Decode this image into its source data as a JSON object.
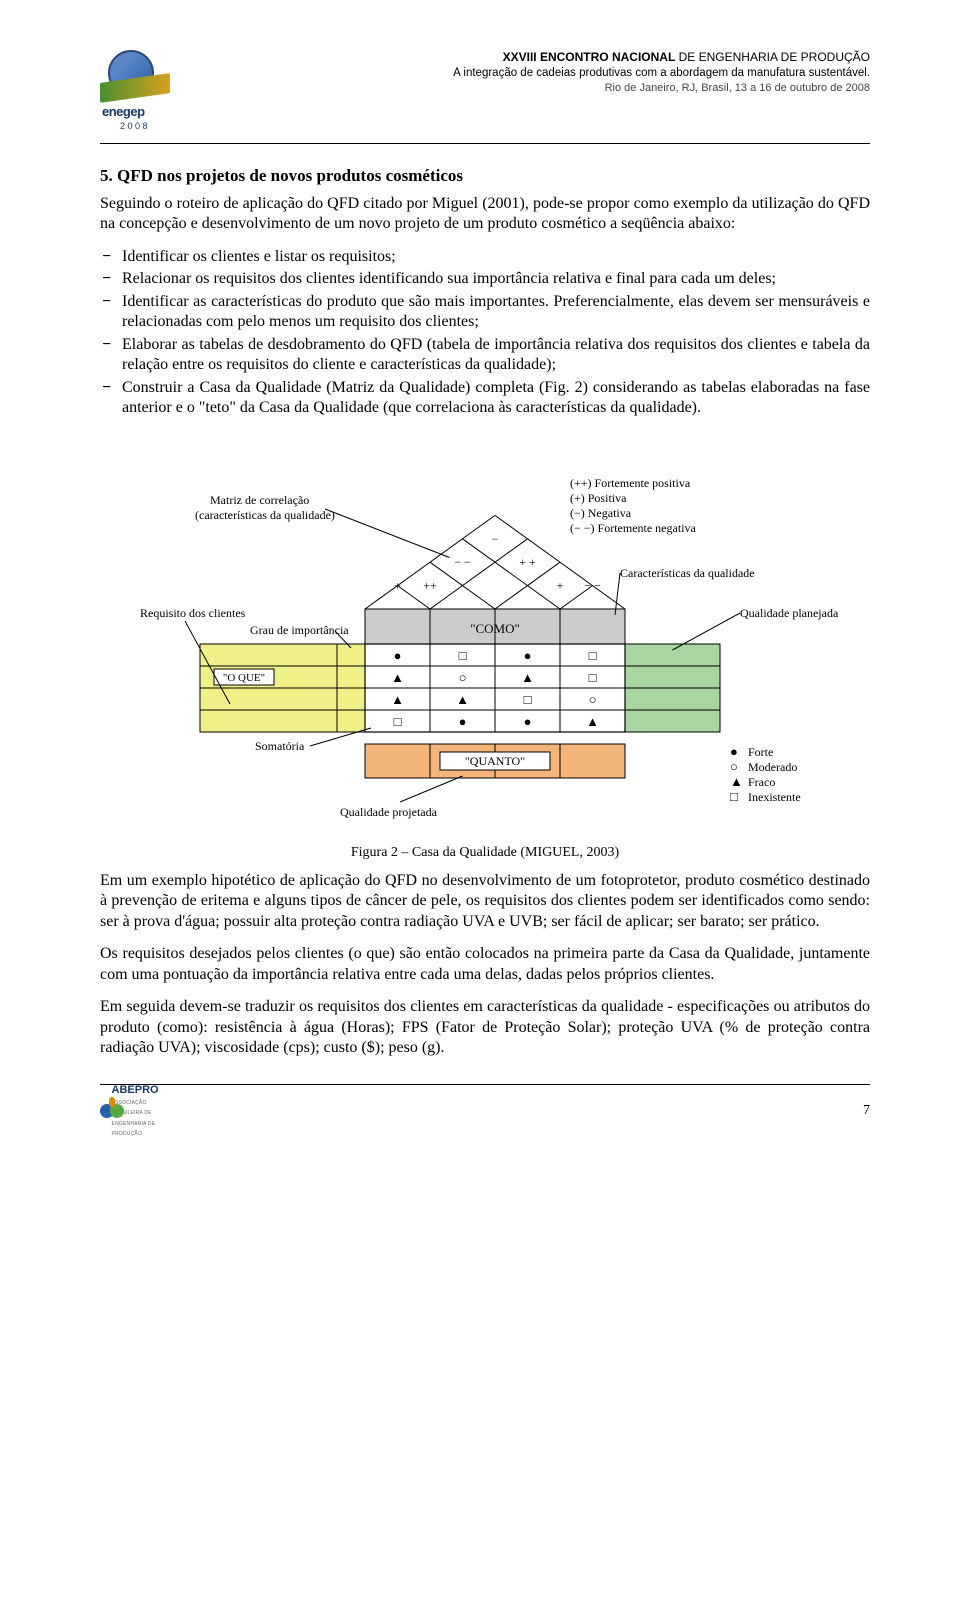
{
  "header": {
    "line1_bold": "XXVIII ENCONTRO NACIONAL",
    "line1_rest": " DE ENGENHARIA DE PRODUÇÃO",
    "line2": "A integração de cadeias produtivas com a abordagem da manufatura sustentável.",
    "line3": "Rio de Janeiro, RJ, Brasil, 13 a 16 de outubro de 2008",
    "logo_text": "enegep",
    "logo_year": "2 0 0 8"
  },
  "section_title": "5. QFD nos projetos de novos produtos cosméticos",
  "intro": "Seguindo o roteiro de aplicação do QFD citado por Miguel (2001), pode-se propor como exemplo da utilização do QFD na concepção e desenvolvimento de um novo projeto de um produto cosmético a seqüência abaixo:",
  "bullets": [
    "Identificar os clientes e listar os requisitos;",
    "Relacionar os requisitos dos clientes identificando sua importância relativa e final para cada um deles;",
    "Identificar as características do produto que são mais importantes. Preferencialmente, elas devem ser mensuráveis e relacionadas com pelo menos um requisito dos clientes;",
    "Elaborar as tabelas de desdobramento do QFD (tabela de importância relativa dos requisitos dos clientes e tabela da relação entre os requisitos do cliente e características da qualidade);",
    "Construir a Casa da Qualidade (Matriz da Qualidade) completa (Fig. 2) considerando as tabelas elaboradas na fase anterior e o \"teto\" da Casa da Qualidade (que correlaciona às características da qualidade)."
  ],
  "figure": {
    "caption": "Figura 2 – Casa da Qualidade (MIGUEL, 2003)",
    "labels": {
      "corr_matrix1": "Matriz de correlação",
      "corr_matrix2": "(características da qualidade)",
      "req_clients": "Requisito dos clientes",
      "grau_imp": "Grau de importância",
      "somatoria": "Somatória",
      "qual_proj": "Qualidade projetada",
      "carac_qual": "Características da qualidade",
      "qual_plan": "Qualidade planejada",
      "como": "\"COMO\"",
      "oque": "\"O QUE\"",
      "quanto": "\"QUANTO\""
    },
    "roof_signs": [
      "−",
      "++",
      "+",
      "− −",
      "+ +",
      "+",
      "− −"
    ],
    "corr_legend": [
      "(++) Fortemente positiva",
      "(+)   Positiva",
      "(−)   Negativa",
      "(− −) Fortemente negativa"
    ],
    "sym_legend": [
      {
        "glyph": "●",
        "label": "Forte"
      },
      {
        "glyph": "○",
        "label": "Moderado"
      },
      {
        "glyph": "▲",
        "label": "Fraco"
      },
      {
        "glyph": "□",
        "label": "Inexistente"
      }
    ],
    "matrix_symbols": [
      [
        "●",
        "□",
        "●",
        "□"
      ],
      [
        "▲",
        "○",
        "▲",
        "□"
      ],
      [
        "▲",
        "▲",
        "□",
        "○"
      ],
      [
        "□",
        "●",
        "●",
        "▲"
      ]
    ],
    "colors": {
      "oque_fill": "#f0f088",
      "como_fill": "#cccccc",
      "quanto_fill": "#f4b57a",
      "plan_fill": "#a8d5a0",
      "line": "#000000",
      "leader": "#000000",
      "font_size_small": 11,
      "font_size_label": 12
    }
  },
  "after_fig": [
    "Em um exemplo hipotético de aplicação do QFD no desenvolvimento de um fotoprotetor, produto cosmético destinado à prevenção de eritema e alguns tipos de câncer de pele, os requisitos dos clientes podem ser identificados como sendo: ser à prova d'água; possuir alta proteção contra radiação UVA e UVB; ser fácil de aplicar; ser barato; ser prático.",
    "Os requisitos desejados pelos clientes (o que) são então colocados na primeira parte da Casa da Qualidade, juntamente com uma pontuação da importância relativa entre cada uma delas, dadas pelos próprios clientes.",
    "Em seguida devem-se traduzir os requisitos dos clientes em características da qualidade - especificações ou atributos do produto (como): resistência à água (Horas); FPS (Fator de Proteção Solar); proteção UVA (% de proteção contra radiação UVA); viscosidade (cps); custo ($); peso (g)."
  ],
  "footer": {
    "logo": "ABEPRO",
    "logo_sub": "ASSOCIAÇÃO BRASILEIRA DE ENGENHARIA DE PRODUÇÃO",
    "page_num": "7"
  }
}
